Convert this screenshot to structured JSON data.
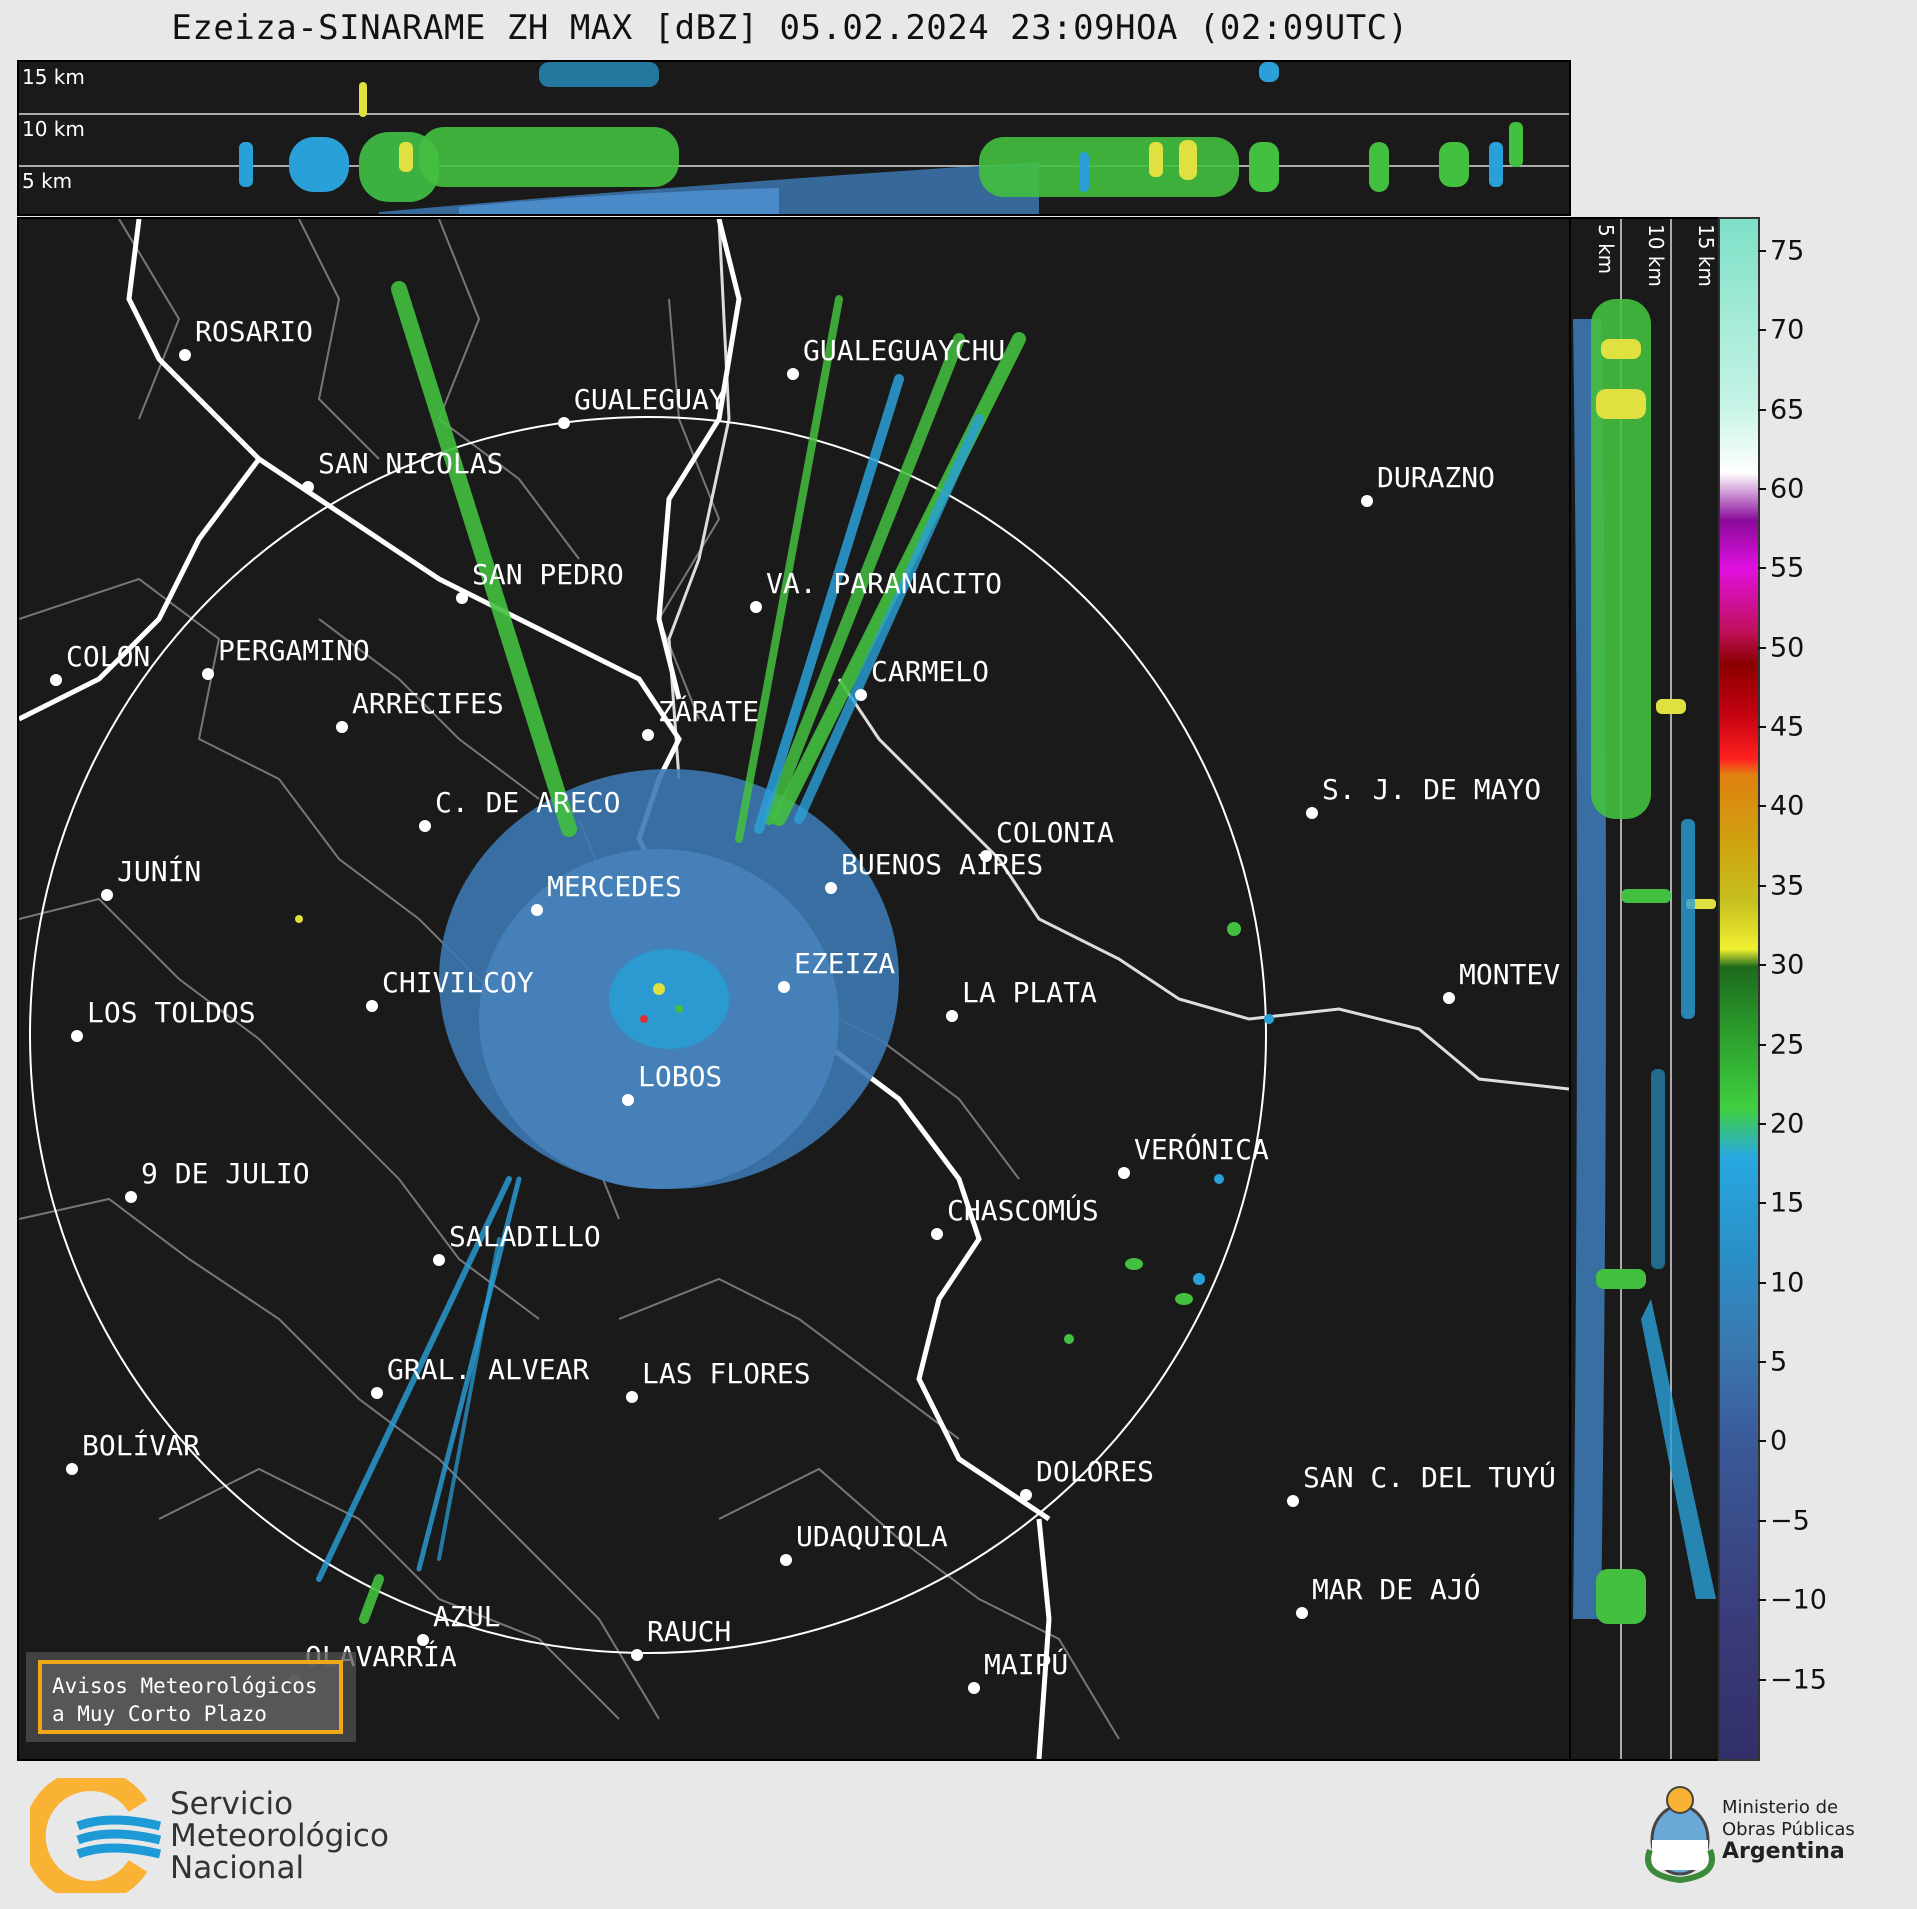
{
  "title": "Ezeiza-SINARAME ZH MAX [dBZ] 05.02.2024 23:09HOA (02:09UTC)",
  "top_panel": {
    "height_labels": [
      "15 km",
      "10 km",
      "5 km"
    ]
  },
  "side_panel": {
    "height_labels": [
      "5 km",
      "10 km",
      "15 km"
    ]
  },
  "colorbar": {
    "unit": "dBZ",
    "ticks": [
      "75",
      "70",
      "65",
      "60",
      "55",
      "50",
      "45",
      "40",
      "35",
      "30",
      "25",
      "20",
      "15",
      "10",
      "5",
      "0",
      "−5",
      "−10",
      "−15"
    ],
    "tick_values": [
      75,
      70,
      65,
      60,
      55,
      50,
      45,
      40,
      35,
      30,
      25,
      20,
      15,
      10,
      5,
      0,
      -5,
      -10,
      -15
    ],
    "range": [
      -20,
      77
    ]
  },
  "cities": [
    {
      "name": "ROSARIO"
    },
    {
      "name": "GUALEGUAYCHU"
    },
    {
      "name": "GUALEGUAY"
    },
    {
      "name": "SAN NICOLAS"
    },
    {
      "name": "DURAZNO"
    },
    {
      "name": "SAN PEDRO"
    },
    {
      "name": "VA. PARANACITO"
    },
    {
      "name": "COLON"
    },
    {
      "name": "PERGAMINO"
    },
    {
      "name": "CARMELO"
    },
    {
      "name": "ARRECIFES"
    },
    {
      "name": "ZÁRATE"
    },
    {
      "name": "S. J. DE MAYO"
    },
    {
      "name": "C. DE ARECO"
    },
    {
      "name": "COLONIA"
    },
    {
      "name": "BUENOS AIRES"
    },
    {
      "name": "JUNÍN"
    },
    {
      "name": "MERCEDES"
    },
    {
      "name": "EZEIZA"
    },
    {
      "name": "MONTEV"
    },
    {
      "name": "CHIVILCOY"
    },
    {
      "name": "LA PLATA"
    },
    {
      "name": "LOS TOLDOS"
    },
    {
      "name": "LOBOS"
    },
    {
      "name": "VERÓNICA"
    },
    {
      "name": "9 DE JULIO"
    },
    {
      "name": "CHASCOMÚS"
    },
    {
      "name": "SALADILLO"
    },
    {
      "name": "GRAL. ALVEAR"
    },
    {
      "name": "LAS FLORES"
    },
    {
      "name": "BOLÍVAR"
    },
    {
      "name": "DOLORES"
    },
    {
      "name": "SAN C. DEL TUYÚ"
    },
    {
      "name": "UDAQUIOLA"
    },
    {
      "name": "MAR DE AJÓ"
    },
    {
      "name": "AZUL"
    },
    {
      "name": "RAUCH"
    },
    {
      "name": "OLAVARRÍA"
    },
    {
      "name": "MAIPÚ"
    }
  ],
  "notice": {
    "line1": "Avisos Meteorológicos",
    "line2": "a Muy Corto Plazo"
  },
  "smn": {
    "line1": "Servicio",
    "line2": "Meteorológico",
    "line3": "Nacional"
  },
  "ministry": {
    "line1": "Ministerio de",
    "line2": "Obras Públicas",
    "line3": "Argentina"
  },
  "colors": {
    "accent": "#f0a818",
    "panel_bg": "#1a1a1a",
    "precip_base": "#3c78b0"
  }
}
